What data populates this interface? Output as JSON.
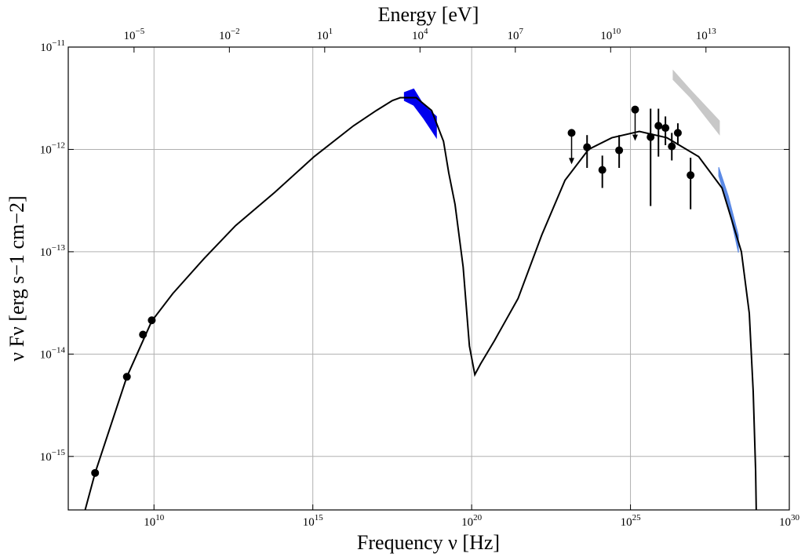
{
  "chart_data": {
    "type": "line",
    "xlabel": "Frequency ν [Hz]",
    "ylabel": "ν Fν [erg s−1 cm−2]",
    "x2label": "Energy [eV]",
    "xlog": true,
    "ylog": true,
    "grid": true,
    "xlim": [
      20000000.0,
      1e+30
    ],
    "ylim": [
      3e-16,
      1e-11
    ],
    "x2lim": [
      8.5e-08,
      4200000000000000.0
    ],
    "xticks": [
      {
        "value": 10000000000.0,
        "label": "1010"
      },
      {
        "value": 1000000000000000.0,
        "label": "1015"
      },
      {
        "value": 1e+20,
        "label": "1020"
      },
      {
        "value": 1e+25,
        "label": "1025"
      },
      {
        "value": 1e+30,
        "label": "1030"
      }
    ],
    "yticks": [
      {
        "value": 1e-15,
        "label": "10−15"
      },
      {
        "value": 1e-14,
        "label": "10−14"
      },
      {
        "value": 1e-13,
        "label": "10−13"
      },
      {
        "value": 1e-12,
        "label": "10−12"
      },
      {
        "value": 1e-11,
        "label": "10−11"
      }
    ],
    "x2ticks": [
      {
        "value": 1e-05,
        "label": "10−5"
      },
      {
        "value": 0.01,
        "label": "10−2"
      },
      {
        "value": 10,
        "label": "101"
      },
      {
        "value": 10000.0,
        "label": "104"
      },
      {
        "value": 10000000.0,
        "label": "107"
      },
      {
        "value": 10000000000.0,
        "label": "1010"
      },
      {
        "value": 10000000000000.0,
        "label": "1013"
      }
    ],
    "series": [
      {
        "type": "line",
        "color": "#000000",
        "x": [
          68000000.0,
          140000000.0,
          1400000000.0,
          8500000000.0,
          39000000000.0,
          380000000000.0,
          3700000000000.0,
          63000000000000.0,
          1100000000000000.0,
          1.9e+16,
          1e+17,
          3.2e+17,
          5.6e+17,
          1.8e+18,
          5.5e+18,
          1.3e+19,
          1.9e+19,
          3e+19,
          5.4e+19,
          8.5e+19,
          1.26e+20,
          1.9e+20,
          5.2e+20,
          2.9e+21,
          1.6e+22,
          8.7e+22,
          4.8e+23,
          2.6e+24,
          1.9e+25,
          1.4e+26,
          1.4e+27,
          7.6e+27,
          3.1e+28,
          5.5e+28,
          7.3e+28,
          8.7e+28,
          9.1e+28
        ],
        "values": [
          3e-16,
          6.9e-16,
          6e-15,
          2.1e-14,
          3.9e-14,
          8.6e-14,
          1.8e-13,
          3.8e-13,
          8.5e-13,
          1.7e-12,
          2.4e-12,
          3e-12,
          3.2e-12,
          3.2e-12,
          2.4e-12,
          1.2e-12,
          5.9e-13,
          2.9e-13,
          7.1e-14,
          1.2e-14,
          6.3e-15,
          8e-15,
          1.35e-14,
          3.5e-14,
          1.45e-13,
          5e-13,
          1e-12,
          1.3e-12,
          1.5e-12,
          1.3e-12,
          8.5e-13,
          4.2e-13,
          1e-13,
          2.5e-14,
          4.3e-15,
          7.2e-16,
          3e-16
        ]
      },
      {
        "type": "scatter",
        "color": "#000000",
        "x": [
          140000000.0,
          1400000000.0,
          4500000000.0,
          8500000000.0
        ],
        "values": [
          6.9e-16,
          6e-15,
          1.55e-14,
          2.14e-14
        ]
      },
      {
        "type": "errorbar",
        "color": "#000000",
        "x": [
          4.3e+23,
          1.3e+24,
          4.4e+24,
          4.3e+25,
          7.6e+25,
          1.26e+26,
          2e+26,
          3.1e+26,
          7.8e+26
        ],
        "values": [
          1.05e-12,
          6.3e-13,
          9.8e-13,
          1.32e-12,
          1.7e-12,
          1.62e-12,
          1.07e-12,
          1.45e-12,
          5.6e-13
        ],
        "y_low": [
          6.6e-13,
          4.2e-13,
          6.6e-13,
          2.8e-13,
          8.5e-13,
          1.1e-12,
          7.8e-13,
          1.1e-12,
          2.6e-13
        ],
        "y_high": [
          1.38e-12,
          8.7e-13,
          1.38e-12,
          2.5e-12,
          2.5e-12,
          2.1e-12,
          1.45e-12,
          1.8e-12,
          8.3e-13
        ]
      },
      {
        "type": "upper_limit",
        "color": "#000000",
        "x": [
          1.4e+23,
          1.4e+25
        ],
        "values": [
          1.45e-12,
          2.45e-12
        ]
      },
      {
        "type": "band",
        "color": "#0000ee",
        "x": [
          7.6e+17,
          1.5e+18,
          3.1e+18,
          7.8e+18
        ],
        "y_high": [
          3.6e-12,
          3.9e-12,
          2.7e-12,
          2.1e-12
        ],
        "y_low": [
          3e-12,
          2.7e-12,
          2e-12,
          1.3e-12
        ]
      },
      {
        "type": "band",
        "color": "#c8c8c8",
        "x": [
          2.2e+26,
          7.8e+26,
          6.3e+27
        ],
        "y_high": [
          5.9e-12,
          3.8e-12,
          1.9e-12
        ],
        "y_low": [
          4.8e-12,
          3.2e-12,
          1.4e-12
        ]
      },
      {
        "type": "band",
        "color": "#5b8ae6",
        "x": [
          6e+27,
          1.2e+28,
          2.5e+28
        ],
        "y_high": [
          6.7e-13,
          3.5e-13,
          1.45e-13
        ],
        "y_low": [
          5.5e-13,
          2.8e-13,
          9.8e-14
        ]
      }
    ]
  }
}
